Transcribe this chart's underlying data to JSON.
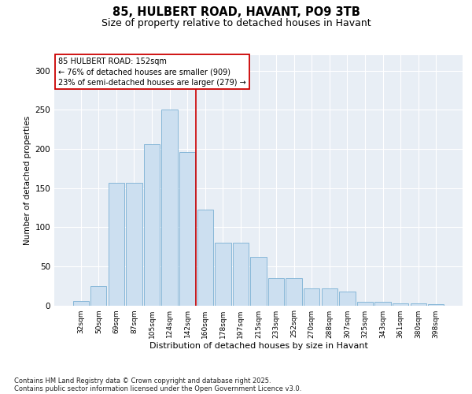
{
  "title": "85, HULBERT ROAD, HAVANT, PO9 3TB",
  "subtitle": "Size of property relative to detached houses in Havant",
  "xlabel": "Distribution of detached houses by size in Havant",
  "ylabel": "Number of detached properties",
  "categories": [
    "32sqm",
    "50sqm",
    "69sqm",
    "87sqm",
    "105sqm",
    "124sqm",
    "142sqm",
    "160sqm",
    "178sqm",
    "197sqm",
    "215sqm",
    "233sqm",
    "252sqm",
    "270sqm",
    "288sqm",
    "307sqm",
    "325sqm",
    "343sqm",
    "361sqm",
    "380sqm",
    "398sqm"
  ],
  "values": [
    6,
    25,
    157,
    157,
    206,
    250,
    196,
    122,
    80,
    80,
    62,
    35,
    35,
    22,
    22,
    18,
    5,
    5,
    3,
    3,
    2
  ],
  "bar_color": "#ccdff0",
  "bar_edge_color": "#7ab0d4",
  "bg_color": "#e8eef5",
  "grid_color": "#ffffff",
  "vline_color": "#cc0000",
  "vline_position": 6.5,
  "annotation_text": "85 HULBERT ROAD: 152sqm\n← 76% of detached houses are smaller (909)\n23% of semi-detached houses are larger (279) →",
  "footer_line1": "Contains HM Land Registry data © Crown copyright and database right 2025.",
  "footer_line2": "Contains public sector information licensed under the Open Government Licence v3.0.",
  "ylim": [
    0,
    320
  ],
  "yticks": [
    0,
    50,
    100,
    150,
    200,
    250,
    300
  ]
}
